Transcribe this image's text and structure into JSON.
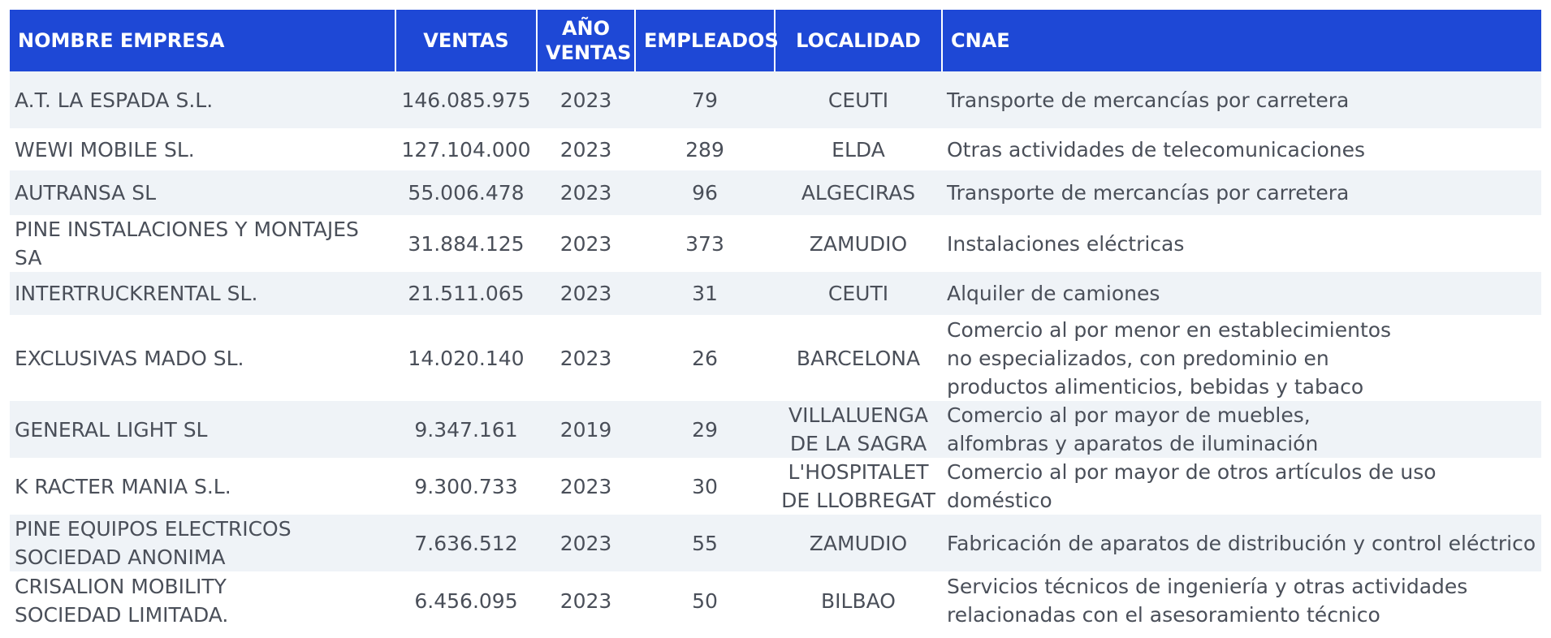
{
  "table": {
    "columns": [
      {
        "key": "company",
        "label": "NOMBRE EMPRESA"
      },
      {
        "key": "sales",
        "label": "VENTAS"
      },
      {
        "key": "year",
        "label": "AÑO\nVENTAS"
      },
      {
        "key": "employees",
        "label": "EMPLEADOS"
      },
      {
        "key": "location",
        "label": "LOCALIDAD"
      },
      {
        "key": "cnae",
        "label": "CNAE"
      }
    ],
    "rows": [
      {
        "company": "A.T. LA ESPADA S.L.",
        "sales": "146.085.975",
        "year": "2023",
        "employees": "79",
        "location": "CEUTI",
        "cnae": "Transporte de mercancías por carretera"
      },
      {
        "company": "WEWI MOBILE SL.",
        "sales": "127.104.000",
        "year": "2023",
        "employees": "289",
        "location": "ELDA",
        "cnae": "Otras actividades de telecomunicaciones"
      },
      {
        "company": "AUTRANSA SL",
        "sales": "55.006.478",
        "year": "2023",
        "employees": "96",
        "location": "ALGECIRAS",
        "cnae": "Transporte de mercancías por carretera"
      },
      {
        "company": "PINE INSTALACIONES Y MONTAJES SA",
        "sales": "31.884.125",
        "year": "2023",
        "employees": "373",
        "location": "ZAMUDIO",
        "cnae": "Instalaciones eléctricas"
      },
      {
        "company": "INTERTRUCKRENTAL SL.",
        "sales": "21.511.065",
        "year": "2023",
        "employees": "31",
        "location": "CEUTI",
        "cnae": "Alquiler de camiones"
      },
      {
        "company": "EXCLUSIVAS MADO SL.",
        "sales": "14.020.140",
        "year": "2023",
        "employees": "26",
        "location": "BARCELONA",
        "cnae": "Comercio al por menor en establecimientos\nno especializados, con predominio en\nproductos alimenticios, bebidas y tabaco"
      },
      {
        "company": "GENERAL LIGHT SL",
        "sales": "9.347.161",
        "year": "2019",
        "employees": "29",
        "location": "VILLALUENGA\nDE LA SAGRA",
        "cnae": "Comercio al por mayor de muebles,\nalfombras y aparatos de iluminación"
      },
      {
        "company": "K RACTER MANIA S.L.",
        "sales": "9.300.733",
        "year": "2023",
        "employees": "30",
        "location": "L'HOSPITALET\nDE LLOBREGAT",
        "cnae": "Comercio al por mayor de otros artículos de uso doméstico"
      },
      {
        "company": "PINE EQUIPOS ELECTRICOS\nSOCIEDAD ANONIMA",
        "sales": "7.636.512",
        "year": "2023",
        "employees": "55",
        "location": "ZAMUDIO",
        "cnae": "Fabricación de aparatos de distribución y control eléctrico"
      },
      {
        "company": "CRISALION MOBILITY\nSOCIEDAD LIMITADA.",
        "sales": "6.456.095",
        "year": "2023",
        "employees": "50",
        "location": "BILBAO",
        "cnae": "Servicios técnicos de ingeniería y otras actividades\nrelacionadas con el asesoramiento técnico"
      }
    ]
  }
}
